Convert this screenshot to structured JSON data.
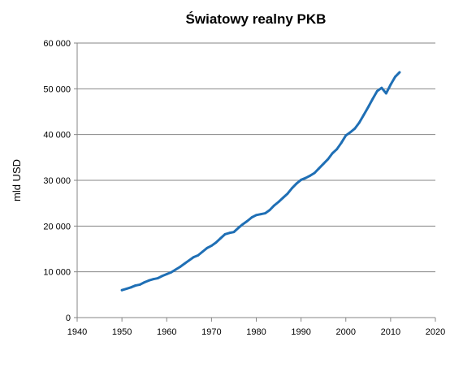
{
  "chart_data": {
    "type": "line",
    "title": "Światowy realny PKB",
    "xlabel": "",
    "ylabel": "mld USD",
    "xlim": [
      1940,
      2020
    ],
    "ylim": [
      0,
      60000
    ],
    "x_ticks": [
      1940,
      1950,
      1960,
      1970,
      1980,
      1990,
      2000,
      2010,
      2020
    ],
    "y_ticks": [
      0,
      10000,
      20000,
      30000,
      40000,
      50000,
      60000
    ],
    "x_tick_labels": [
      "1940",
      "1950",
      "1960",
      "1970",
      "1980",
      "1990",
      "2000",
      "2010",
      "2020"
    ],
    "y_tick_labels": [
      "0",
      "10 000",
      "20 000",
      "30 000",
      "40 000",
      "50 000",
      "60 000"
    ],
    "grid": "horizontal",
    "legend": "none",
    "line_color": "#1f6fb5",
    "series": [
      {
        "x": [
          1950,
          1951,
          1952,
          1953,
          1954,
          1955,
          1956,
          1957,
          1958,
          1959,
          1960,
          1961,
          1962,
          1963,
          1964,
          1965,
          1966,
          1967,
          1968,
          1969,
          1970,
          1971,
          1972,
          1973,
          1974,
          1975,
          1976,
          1977,
          1978,
          1979,
          1980,
          1981,
          1982,
          1983,
          1984,
          1985,
          1986,
          1987,
          1988,
          1989,
          1990,
          1991,
          1992,
          1993,
          1994,
          1995,
          1996,
          1997,
          1998,
          1999,
          2000,
          2001,
          2002,
          2003,
          2004,
          2005,
          2006,
          2007,
          2008,
          2009,
          2010,
          2011,
          2012
        ],
        "values": [
          6000,
          6300,
          6600,
          7000,
          7200,
          7700,
          8100,
          8400,
          8600,
          9100,
          9500,
          9900,
          10500,
          11100,
          11800,
          12500,
          13200,
          13600,
          14400,
          15200,
          15700,
          16400,
          17300,
          18200,
          18500,
          18700,
          19600,
          20400,
          21100,
          21900,
          22400,
          22600,
          22800,
          23500,
          24500,
          25300,
          26200,
          27100,
          28300,
          29300,
          30100,
          30500,
          31000,
          31600,
          32600,
          33600,
          34600,
          35900,
          36800,
          38200,
          39800,
          40500,
          41300,
          42600,
          44300,
          46000,
          47800,
          49500,
          50200,
          49000,
          50900,
          52600,
          53600
        ]
      }
    ]
  }
}
